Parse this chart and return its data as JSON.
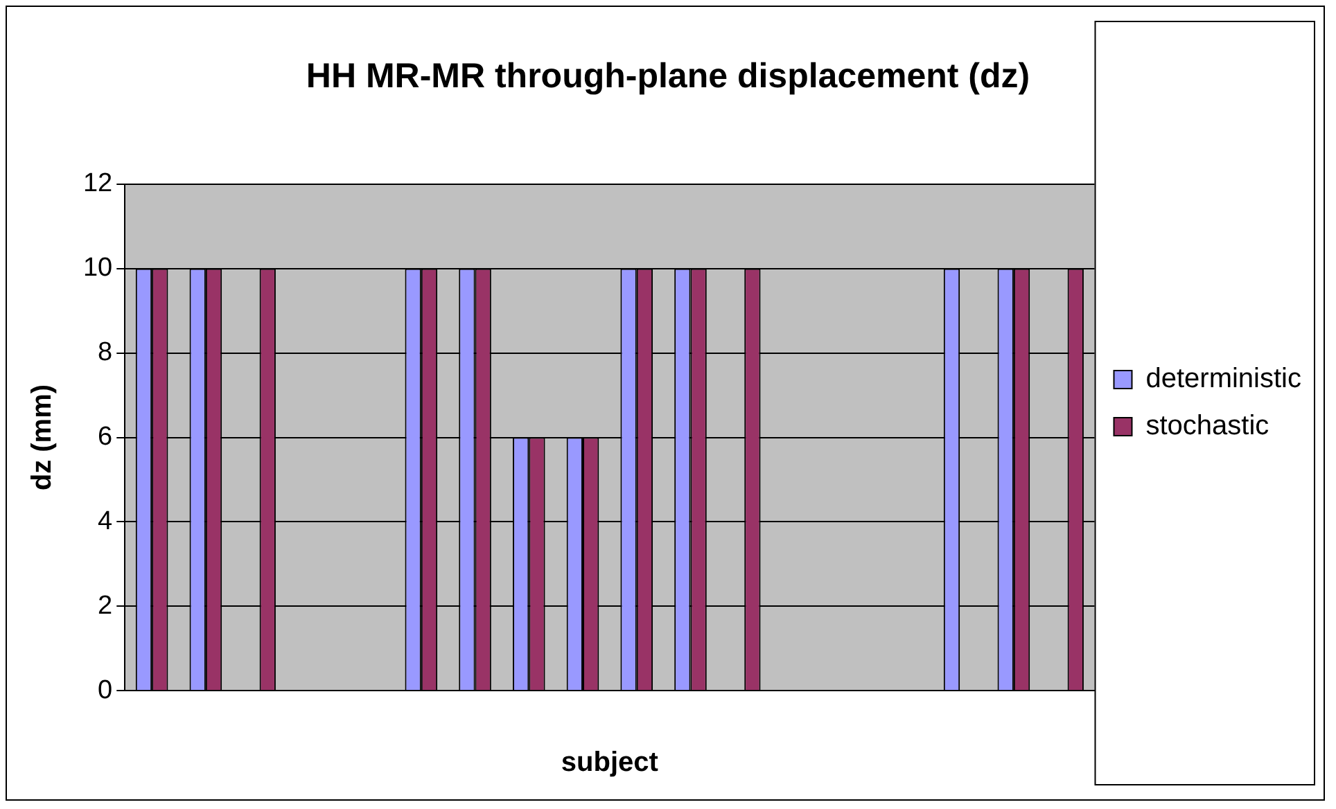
{
  "chart_data": {
    "type": "bar",
    "title": "HH MR-MR through-plane displacement (dz)",
    "xlabel": "subject",
    "ylabel": "dz (mm)",
    "categories": [
      null,
      null,
      null,
      null,
      null,
      null,
      null,
      null,
      null,
      null,
      null,
      null,
      null,
      null,
      null,
      null,
      null,
      null
    ],
    "series": [
      {
        "name": "deterministic",
        "color": "#9999ff",
        "values": [
          10,
          10,
          null,
          null,
          null,
          10,
          10,
          6,
          6,
          10,
          10,
          null,
          null,
          null,
          null,
          10,
          10,
          null
        ]
      },
      {
        "name": "stochastic",
        "color": "#993366",
        "values": [
          10,
          10,
          10,
          null,
          null,
          10,
          10,
          6,
          6,
          10,
          10,
          10,
          null,
          null,
          null,
          null,
          10,
          10
        ]
      }
    ],
    "ylim": [
      0,
      12
    ],
    "yticks": [
      0,
      2,
      4,
      6,
      8,
      10,
      12
    ],
    "grid": "y",
    "legend": "right"
  }
}
